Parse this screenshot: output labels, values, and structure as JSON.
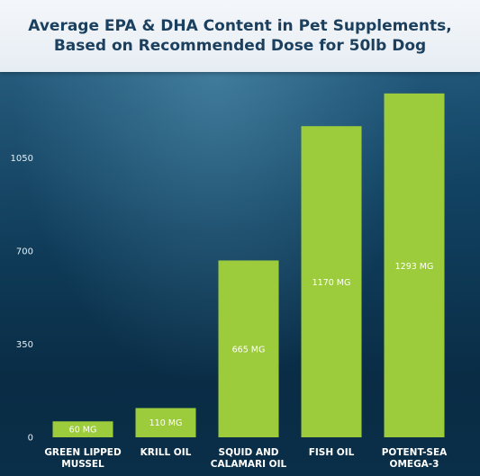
{
  "chart_data": {
    "type": "bar",
    "title_lines": [
      "Average EPA & DHA Content in Pet Supplements,",
      "Based on Recommended Dose for 50lb Dog"
    ],
    "categories": [
      [
        "GREEN LIPPED",
        "MUSSEL"
      ],
      [
        "KRILL OIL"
      ],
      [
        "SQUID AND",
        "CALAMARI OIL"
      ],
      [
        "FISH OIL"
      ],
      [
        "POTENT-SEA",
        "OMEGA-3"
      ]
    ],
    "values": [
      60,
      110,
      665,
      1170,
      1293
    ],
    "data_labels": [
      "60 MG",
      "110 MG",
      "665 MG",
      "1170 MG",
      "1293 MG"
    ],
    "yticks": [
      "0",
      "350",
      "700",
      "1050"
    ],
    "ylim": [
      0,
      1350
    ],
    "xlabel": "",
    "ylabel": "",
    "grid": false,
    "legend": "none",
    "bar_color": "#9ccb3b"
  }
}
